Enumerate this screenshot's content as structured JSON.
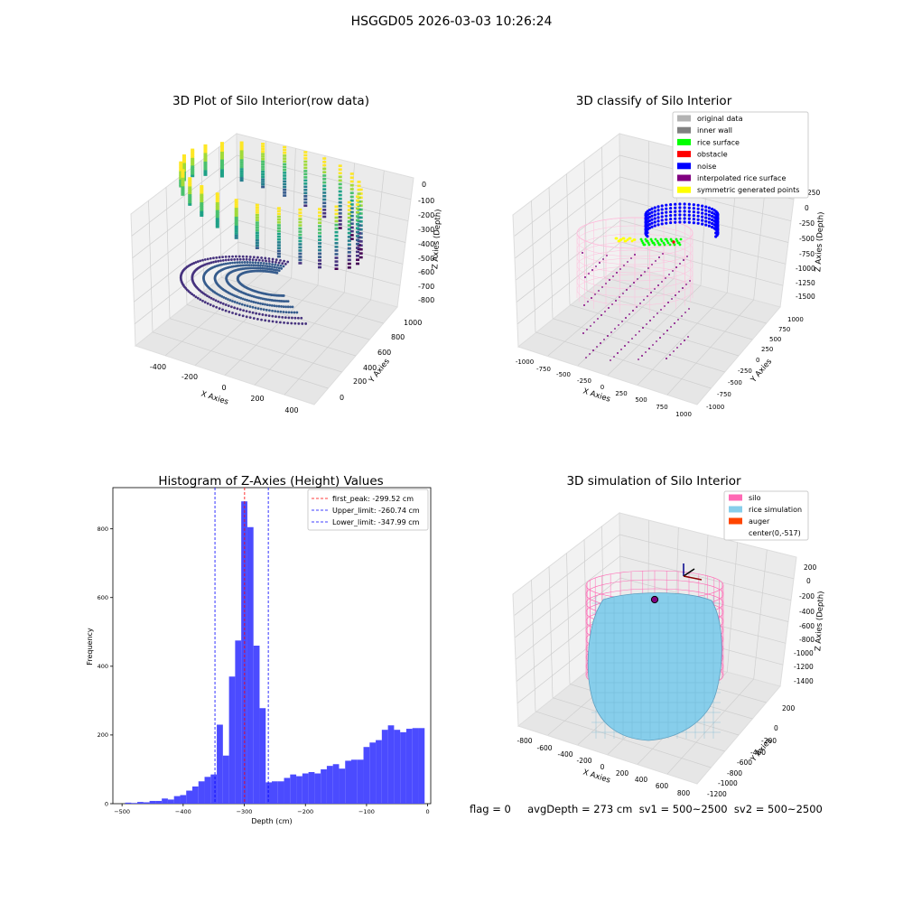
{
  "figure": {
    "suptitle": "HSGGD05 2026-03-03 10:26:24",
    "footer": "flag = 0     avgDepth = 273 cm  sv1 = 500~2500  sv2 = 500~2500"
  },
  "panels": {
    "raw": {
      "title": "3D Plot of Silo Interior(row data)",
      "xlabel": "X Axies",
      "ylabel": "Y Axies",
      "zlabel": "Z Axies (Depth)",
      "xticks": [
        "-400",
        "-200",
        "0",
        "200",
        "400"
      ],
      "yticks": [
        "0",
        "200",
        "400",
        "600",
        "800",
        "1000"
      ],
      "zticks": [
        "0",
        "-100",
        "-200",
        "-300",
        "-400",
        "-500",
        "-600",
        "-700",
        "-800"
      ]
    },
    "classify": {
      "title": "3D classify of Silo Interior",
      "xlabel": "X Axies",
      "ylabel": "Y Axies",
      "zlabel": "Z Axies (Depth)",
      "xticks": [
        "-1000",
        "-750",
        "-500",
        "-250",
        "0",
        "250",
        "500",
        "750",
        "1000"
      ],
      "yticks": [
        "-1000",
        "-750",
        "-500",
        "-250",
        "0",
        "250",
        "500",
        "750",
        "1000"
      ],
      "zticks": [
        "250",
        "0",
        "-250",
        "-500",
        "-750",
        "-1000",
        "-1250",
        "-1500"
      ],
      "legend": [
        {
          "label": "original data",
          "color": "#b3b3b3"
        },
        {
          "label": "inner wall",
          "color": "#808080"
        },
        {
          "label": "rice surface",
          "color": "#00ff00"
        },
        {
          "label": "obstacle",
          "color": "#ff0000"
        },
        {
          "label": "noise",
          "color": "#0000ff"
        },
        {
          "label": "interpolated rice surface",
          "color": "#800080"
        },
        {
          "label": "symmetric generated points",
          "color": "#ffff00"
        }
      ]
    },
    "simulation": {
      "title": "3D simulation of Silo Interior",
      "xlabel": "X Axies",
      "ylabel": "Y Axies",
      "zlabel": "Z Axies (Depth)",
      "xticks": [
        "-800",
        "-600",
        "-400",
        "-200",
        "0",
        "200",
        "400",
        "600",
        "800"
      ],
      "yticks": [
        "200",
        "0",
        "-200",
        "-400",
        "-600",
        "-800",
        "-1000",
        "-1200"
      ],
      "zticks": [
        "200",
        "0",
        "-200",
        "-400",
        "-600",
        "-800",
        "-1000",
        "-1200",
        "-1400"
      ],
      "legend": [
        {
          "label": "silo",
          "color": "#ff69b4"
        },
        {
          "label": "rice simulation",
          "color": "#87ceeb"
        },
        {
          "label": "auger",
          "color": "#ff4500"
        },
        {
          "label": "center(0,-517)",
          "color": ""
        }
      ]
    }
  },
  "chart_data": [
    {
      "type": "scatter",
      "dimension": "3d",
      "title": "3D Plot of Silo Interior(row data)",
      "xlabel": "X Axies",
      "ylabel": "Y Axies",
      "zlabel": "Z Axies (Depth)",
      "xlim": [
        -500,
        500
      ],
      "ylim": [
        -100,
        1100
      ],
      "zlim": [
        -850,
        50
      ],
      "colormap": "viridis",
      "grid": true
    },
    {
      "type": "scatter",
      "dimension": "3d",
      "title": "3D classify of Silo Interior",
      "xlabel": "X Axies",
      "ylabel": "Y Axies",
      "zlabel": "Z Axies (Depth)",
      "xlim": [
        -1000,
        1000
      ],
      "ylim": [
        -1000,
        1000
      ],
      "zlim": [
        -1500,
        250
      ],
      "legend_position": "upper right",
      "series": [
        {
          "name": "original data",
          "color": "#b3b3b3"
        },
        {
          "name": "inner wall",
          "color": "#808080"
        },
        {
          "name": "rice surface",
          "color": "#00ff00"
        },
        {
          "name": "obstacle",
          "color": "#ff0000"
        },
        {
          "name": "noise",
          "color": "#0000ff"
        },
        {
          "name": "interpolated rice surface",
          "color": "#800080"
        },
        {
          "name": "symmetric generated points",
          "color": "#ffff00"
        }
      ],
      "grid": true
    },
    {
      "type": "bar",
      "title": "Histogram of Z-Axies (Height) Values",
      "xlabel": "Depth (cm)",
      "ylabel": "Frequency",
      "xlim": [
        -515,
        5
      ],
      "ylim": [
        0,
        920
      ],
      "xticks": [
        -500,
        -400,
        -300,
        -200,
        -100,
        0
      ],
      "yticks": [
        0,
        200,
        400,
        600,
        800
      ],
      "bar_color": "#4b4bff",
      "bin_width": 10,
      "bin_starts": [
        -495,
        -485,
        -475,
        -465,
        -455,
        -445,
        -435,
        -425,
        -415,
        -405,
        -395,
        -385,
        -375,
        -365,
        -355,
        -345,
        -335,
        -325,
        -315,
        -305,
        -295,
        -285,
        -275,
        -265,
        -255,
        -245,
        -235,
        -225,
        -215,
        -205,
        -195,
        -185,
        -175,
        -165,
        -155,
        -145,
        -135,
        -125,
        -115,
        -105,
        -95,
        -85,
        -75,
        -65,
        -55,
        -45,
        -35,
        -25,
        -15
      ],
      "values": [
        3,
        2,
        5,
        4,
        8,
        8,
        15,
        12,
        22,
        25,
        38,
        50,
        65,
        78,
        85,
        230,
        140,
        370,
        475,
        880,
        805,
        460,
        278,
        62,
        65,
        65,
        75,
        85,
        80,
        88,
        92,
        88,
        100,
        110,
        115,
        102,
        125,
        128,
        128,
        165,
        178,
        185,
        215,
        228,
        215,
        208,
        218,
        220,
        220
      ],
      "reference_lines": [
        {
          "label": "first_peak: -299.52 cm",
          "x": -299.52,
          "color": "#ff0000",
          "style": "dashed"
        },
        {
          "label": "Upper_limit: -260.74 cm",
          "x": -260.74,
          "color": "#0000ff",
          "style": "dashed"
        },
        {
          "label": "Lower_limit: -347.99 cm",
          "x": -347.99,
          "color": "#0000ff",
          "style": "dashed"
        }
      ],
      "legend_position": "upper right",
      "grid": false
    },
    {
      "type": "surface",
      "dimension": "3d",
      "title": "3D simulation of Silo Interior",
      "xlabel": "X Axies",
      "ylabel": "Y Axies",
      "zlabel": "Z Axies (Depth)",
      "xlim": [
        -900,
        900
      ],
      "ylim": [
        -1300,
        300
      ],
      "zlim": [
        -1450,
        300
      ],
      "legend_position": "upper right",
      "series": [
        {
          "name": "silo",
          "color": "#ff69b4"
        },
        {
          "name": "rice simulation",
          "color": "#87ceeb"
        },
        {
          "name": "auger",
          "color": "#ff4500"
        },
        {
          "name": "center(0,-517)"
        }
      ],
      "grid": true
    }
  ]
}
